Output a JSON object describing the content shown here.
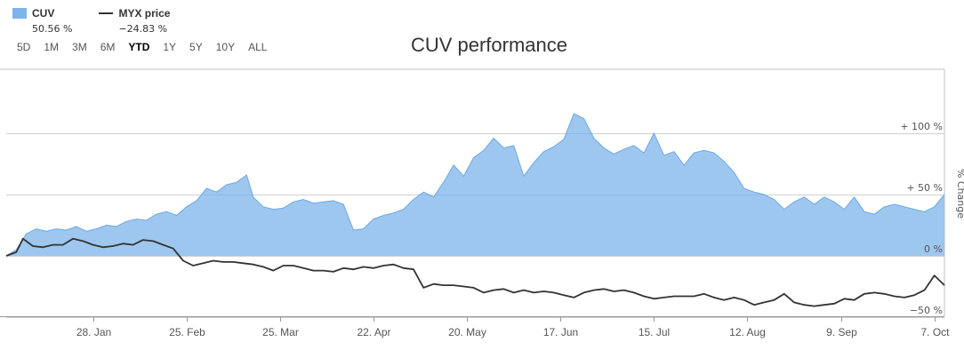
{
  "legend": [
    {
      "name": "CUV",
      "value": "50.56 %",
      "kind": "area",
      "color": "#7db4ea"
    },
    {
      "name": "MYX price",
      "value": "−24.83 %",
      "kind": "line",
      "color": "#333333"
    }
  ],
  "ranges": [
    "5D",
    "1M",
    "3M",
    "6M",
    "YTD",
    "1Y",
    "5Y",
    "10Y",
    "ALL"
  ],
  "active_range": "YTD",
  "chart_data": {
    "type": "area",
    "title": "CUV performance",
    "ylabel": "% Change",
    "ylim": [
      -50,
      100
    ],
    "xlim": [
      "2019-01-02",
      "2019-10-10"
    ],
    "x_ticks": [
      {
        "date": "2019-01-28",
        "label": "28. Jan"
      },
      {
        "date": "2019-02-25",
        "label": "25. Feb"
      },
      {
        "date": "2019-03-25",
        "label": "25. Mar"
      },
      {
        "date": "2019-04-22",
        "label": "22. Apr"
      },
      {
        "date": "2019-05-20",
        "label": "20. May"
      },
      {
        "date": "2019-06-17",
        "label": "17. Jun"
      },
      {
        "date": "2019-07-15",
        "label": "15. Jul"
      },
      {
        "date": "2019-08-12",
        "label": "12. Aug"
      },
      {
        "date": "2019-09-09",
        "label": "9. Sep"
      },
      {
        "date": "2019-10-07",
        "label": "7. Oct"
      }
    ],
    "y_ticks": [
      {
        "value": 100,
        "label": "+ 100 %"
      },
      {
        "value": 50,
        "label": "+ 50 %"
      },
      {
        "value": 0,
        "label": "0 %"
      },
      {
        "value": -50,
        "label": "−50 %"
      }
    ],
    "grid": true,
    "series": [
      {
        "name": "CUV",
        "kind": "area",
        "color": "#7db4ea",
        "points": [
          [
            "2019-01-02",
            0
          ],
          [
            "2019-01-05",
            5
          ],
          [
            "2019-01-08",
            18
          ],
          [
            "2019-01-11",
            22
          ],
          [
            "2019-01-14",
            20
          ],
          [
            "2019-01-17",
            22
          ],
          [
            "2019-01-20",
            21
          ],
          [
            "2019-01-23",
            24
          ],
          [
            "2019-01-26",
            20
          ],
          [
            "2019-01-29",
            22
          ],
          [
            "2019-02-01",
            25
          ],
          [
            "2019-02-04",
            24
          ],
          [
            "2019-02-07",
            28
          ],
          [
            "2019-02-10",
            30
          ],
          [
            "2019-02-13",
            29
          ],
          [
            "2019-02-16",
            34
          ],
          [
            "2019-02-19",
            36
          ],
          [
            "2019-02-22",
            33
          ],
          [
            "2019-02-25",
            40
          ],
          [
            "2019-02-28",
            45
          ],
          [
            "2019-03-03",
            55
          ],
          [
            "2019-03-06",
            52
          ],
          [
            "2019-03-09",
            58
          ],
          [
            "2019-03-12",
            60
          ],
          [
            "2019-03-15",
            66
          ],
          [
            "2019-03-17",
            48
          ],
          [
            "2019-03-20",
            40
          ],
          [
            "2019-03-23",
            38
          ],
          [
            "2019-03-26",
            39
          ],
          [
            "2019-03-29",
            44
          ],
          [
            "2019-04-01",
            46
          ],
          [
            "2019-04-04",
            43
          ],
          [
            "2019-04-07",
            44
          ],
          [
            "2019-04-10",
            45
          ],
          [
            "2019-04-13",
            42
          ],
          [
            "2019-04-16",
            21
          ],
          [
            "2019-04-19",
            22
          ],
          [
            "2019-04-22",
            30
          ],
          [
            "2019-04-25",
            33
          ],
          [
            "2019-04-28",
            35
          ],
          [
            "2019-05-01",
            38
          ],
          [
            "2019-05-04",
            46
          ],
          [
            "2019-05-07",
            52
          ],
          [
            "2019-05-10",
            48
          ],
          [
            "2019-05-13",
            60
          ],
          [
            "2019-05-16",
            74
          ],
          [
            "2019-05-19",
            65
          ],
          [
            "2019-05-22",
            80
          ],
          [
            "2019-05-25",
            86
          ],
          [
            "2019-05-28",
            96
          ],
          [
            "2019-05-31",
            88
          ],
          [
            "2019-06-03",
            90
          ],
          [
            "2019-06-06",
            65
          ],
          [
            "2019-06-09",
            76
          ],
          [
            "2019-06-12",
            85
          ],
          [
            "2019-06-15",
            89
          ],
          [
            "2019-06-18",
            95
          ],
          [
            "2019-06-21",
            116
          ],
          [
            "2019-06-24",
            112
          ],
          [
            "2019-06-27",
            96
          ],
          [
            "2019-06-30",
            88
          ],
          [
            "2019-07-03",
            83
          ],
          [
            "2019-07-06",
            87
          ],
          [
            "2019-07-09",
            90
          ],
          [
            "2019-07-12",
            84
          ],
          [
            "2019-07-15",
            100
          ],
          [
            "2019-07-18",
            82
          ],
          [
            "2019-07-21",
            85
          ],
          [
            "2019-07-24",
            74
          ],
          [
            "2019-07-27",
            84
          ],
          [
            "2019-07-30",
            86
          ],
          [
            "2019-08-02",
            84
          ],
          [
            "2019-08-05",
            77
          ],
          [
            "2019-08-08",
            68
          ],
          [
            "2019-08-11",
            55
          ],
          [
            "2019-08-14",
            52
          ],
          [
            "2019-08-17",
            50
          ],
          [
            "2019-08-20",
            46
          ],
          [
            "2019-08-23",
            38
          ],
          [
            "2019-08-26",
            44
          ],
          [
            "2019-08-29",
            48
          ],
          [
            "2019-09-01",
            42
          ],
          [
            "2019-09-04",
            48
          ],
          [
            "2019-09-07",
            44
          ],
          [
            "2019-09-10",
            38
          ],
          [
            "2019-09-13",
            48
          ],
          [
            "2019-09-16",
            36
          ],
          [
            "2019-09-19",
            34
          ],
          [
            "2019-09-22",
            40
          ],
          [
            "2019-09-25",
            42
          ],
          [
            "2019-09-28",
            40
          ],
          [
            "2019-10-01",
            38
          ],
          [
            "2019-10-04",
            36
          ],
          [
            "2019-10-07",
            40
          ],
          [
            "2019-10-10",
            50
          ]
        ]
      },
      {
        "name": "MYX price",
        "kind": "line",
        "color": "#333333",
        "points": [
          [
            "2019-01-02",
            0
          ],
          [
            "2019-01-05",
            3
          ],
          [
            "2019-01-07",
            14
          ],
          [
            "2019-01-10",
            8
          ],
          [
            "2019-01-13",
            7
          ],
          [
            "2019-01-16",
            9
          ],
          [
            "2019-01-19",
            9
          ],
          [
            "2019-01-22",
            14
          ],
          [
            "2019-01-25",
            12
          ],
          [
            "2019-01-28",
            9
          ],
          [
            "2019-01-31",
            7
          ],
          [
            "2019-02-03",
            8
          ],
          [
            "2019-02-06",
            10
          ],
          [
            "2019-02-09",
            9
          ],
          [
            "2019-02-12",
            13
          ],
          [
            "2019-02-15",
            12
          ],
          [
            "2019-02-18",
            9
          ],
          [
            "2019-02-21",
            6
          ],
          [
            "2019-02-24",
            -4
          ],
          [
            "2019-02-27",
            -8
          ],
          [
            "2019-03-02",
            -6
          ],
          [
            "2019-03-05",
            -4
          ],
          [
            "2019-03-08",
            -5
          ],
          [
            "2019-03-11",
            -5
          ],
          [
            "2019-03-14",
            -6
          ],
          [
            "2019-03-17",
            -7
          ],
          [
            "2019-03-20",
            -9
          ],
          [
            "2019-03-23",
            -12
          ],
          [
            "2019-03-26",
            -8
          ],
          [
            "2019-03-29",
            -8
          ],
          [
            "2019-04-01",
            -10
          ],
          [
            "2019-04-04",
            -12
          ],
          [
            "2019-04-07",
            -12
          ],
          [
            "2019-04-10",
            -13
          ],
          [
            "2019-04-13",
            -10
          ],
          [
            "2019-04-16",
            -11
          ],
          [
            "2019-04-19",
            -9
          ],
          [
            "2019-04-22",
            -10
          ],
          [
            "2019-04-25",
            -8
          ],
          [
            "2019-04-28",
            -7
          ],
          [
            "2019-05-01",
            -10
          ],
          [
            "2019-05-04",
            -11
          ],
          [
            "2019-05-07",
            -26
          ],
          [
            "2019-05-10",
            -23
          ],
          [
            "2019-05-13",
            -24
          ],
          [
            "2019-05-16",
            -24
          ],
          [
            "2019-05-19",
            -25
          ],
          [
            "2019-05-22",
            -26
          ],
          [
            "2019-05-25",
            -30
          ],
          [
            "2019-05-28",
            -28
          ],
          [
            "2019-05-31",
            -27
          ],
          [
            "2019-06-03",
            -30
          ],
          [
            "2019-06-06",
            -28
          ],
          [
            "2019-06-09",
            -30
          ],
          [
            "2019-06-12",
            -29
          ],
          [
            "2019-06-15",
            -30
          ],
          [
            "2019-06-18",
            -32
          ],
          [
            "2019-06-21",
            -34
          ],
          [
            "2019-06-24",
            -30
          ],
          [
            "2019-06-27",
            -28
          ],
          [
            "2019-06-30",
            -27
          ],
          [
            "2019-07-03",
            -29
          ],
          [
            "2019-07-06",
            -28
          ],
          [
            "2019-07-09",
            -30
          ],
          [
            "2019-07-12",
            -33
          ],
          [
            "2019-07-15",
            -35
          ],
          [
            "2019-07-18",
            -34
          ],
          [
            "2019-07-21",
            -33
          ],
          [
            "2019-07-24",
            -33
          ],
          [
            "2019-07-27",
            -33
          ],
          [
            "2019-07-30",
            -31
          ],
          [
            "2019-08-02",
            -34
          ],
          [
            "2019-08-05",
            -36
          ],
          [
            "2019-08-08",
            -34
          ],
          [
            "2019-08-11",
            -36
          ],
          [
            "2019-08-14",
            -40
          ],
          [
            "2019-08-17",
            -38
          ],
          [
            "2019-08-20",
            -36
          ],
          [
            "2019-08-23",
            -31
          ],
          [
            "2019-08-26",
            -38
          ],
          [
            "2019-08-29",
            -40
          ],
          [
            "2019-09-01",
            -41
          ],
          [
            "2019-09-04",
            -40
          ],
          [
            "2019-09-07",
            -39
          ],
          [
            "2019-09-10",
            -35
          ],
          [
            "2019-09-13",
            -36
          ],
          [
            "2019-09-16",
            -31
          ],
          [
            "2019-09-19",
            -30
          ],
          [
            "2019-09-22",
            -31
          ],
          [
            "2019-09-25",
            -33
          ],
          [
            "2019-09-28",
            -34
          ],
          [
            "2019-10-01",
            -32
          ],
          [
            "2019-10-04",
            -28
          ],
          [
            "2019-10-07",
            -16
          ],
          [
            "2019-10-10",
            -24
          ]
        ]
      }
    ]
  }
}
